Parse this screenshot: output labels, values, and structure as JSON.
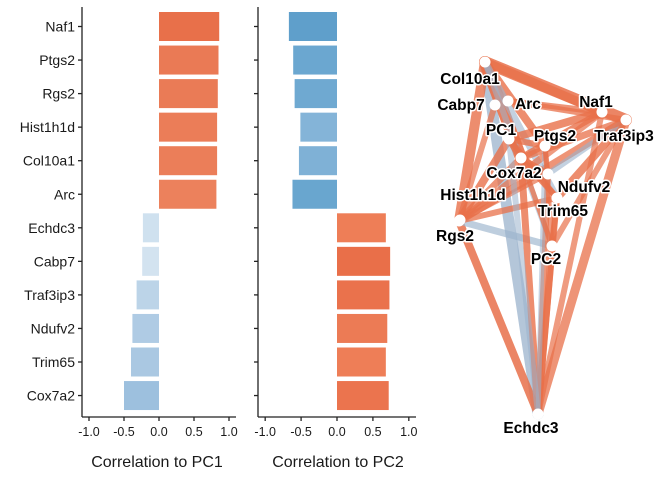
{
  "chart_data": [
    {
      "type": "bar",
      "orientation": "horizontal",
      "xlabel": "Correlation to PC1",
      "xlim": [
        -1.1,
        1.1
      ],
      "xticks": [
        -1.0,
        -0.5,
        0.0,
        0.5,
        1.0
      ],
      "xtick_labels": [
        "-1.0",
        "-0.5",
        "0.0",
        "0.5",
        "1.0"
      ],
      "categories": [
        "Naf1",
        "Ptgs2",
        "Rgs2",
        "Hist1h1d",
        "Col10a1",
        "Arc",
        "Echdc3",
        "Cabp7",
        "Traf3ip3",
        "Ndufv2",
        "Trim65",
        "Cox7a2"
      ],
      "values": [
        0.86,
        0.85,
        0.84,
        0.83,
        0.83,
        0.82,
        -0.23,
        -0.24,
        -0.32,
        -0.38,
        -0.4,
        -0.5
      ],
      "colors": [
        "#e8704a",
        "#ea7a55",
        "#ea7b56",
        "#eb7d58",
        "#eb7e59",
        "#ec815c",
        "#cfe1ef",
        "#d3e3f0",
        "#bcd4e8",
        "#afcbe4",
        "#aac8e2",
        "#9dc0de"
      ]
    },
    {
      "type": "bar",
      "orientation": "horizontal",
      "xlabel": "Correlation to PC2",
      "xlim": [
        -1.1,
        1.1
      ],
      "xticks": [
        -1.0,
        -0.5,
        0.0,
        0.5,
        1.0
      ],
      "xtick_labels": [
        "-1.0",
        "-0.5",
        "0.0",
        "0.5",
        "1.0"
      ],
      "categories": [
        "Naf1",
        "Ptgs2",
        "Rgs2",
        "Hist1h1d",
        "Col10a1",
        "Arc",
        "Echdc3",
        "Cabp7",
        "Traf3ip3",
        "Ndufv2",
        "Trim65",
        "Cox7a2"
      ],
      "values": [
        -0.67,
        -0.61,
        -0.59,
        -0.51,
        -0.53,
        -0.62,
        0.68,
        0.74,
        0.73,
        0.7,
        0.68,
        0.72
      ],
      "colors": [
        "#5f9fcb",
        "#6ba7d0",
        "#6fa9d1",
        "#84b4d8",
        "#7fb1d6",
        "#69a6cf",
        "#ee7e57",
        "#e96f49",
        "#ea724c",
        "#ec7b55",
        "#ee7e57",
        "#eb744e"
      ]
    },
    {
      "type": "network",
      "nodes": [
        "Col10a1",
        "Cabp7",
        "Arc",
        "Naf1",
        "PC1",
        "Ptgs2",
        "Traf3ip3",
        "Cox7a2",
        "Ndufv2",
        "Hist1h1d",
        "Trim65",
        "Rgs2",
        "PC2",
        "Echdc3"
      ],
      "edge_colors": {
        "positive": "#e8704a",
        "negative": "#9bb3cc"
      }
    }
  ]
}
